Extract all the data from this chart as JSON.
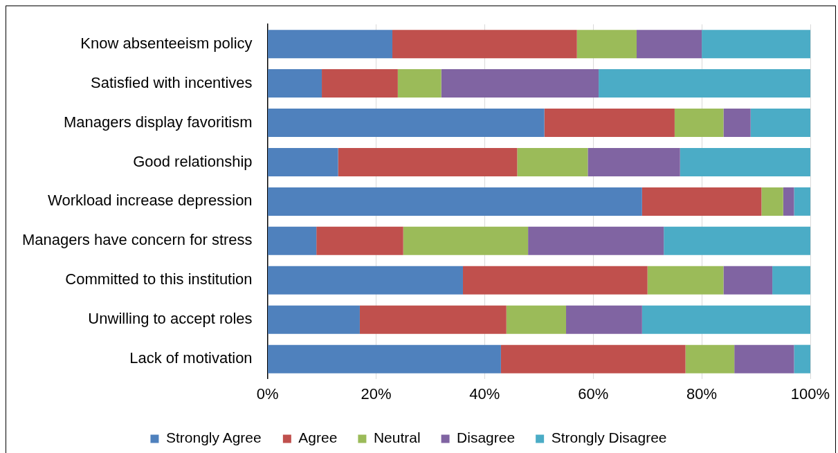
{
  "chart_data": {
    "type": "bar",
    "orientation": "horizontal",
    "stacked": true,
    "categories": [
      "Know absenteeism policy",
      "Satisfied with incentives",
      "Managers display favoritism",
      "Good relationship",
      "Workload increase depression",
      "Managers have concern for stress",
      "Committed to this institution",
      "Unwilling to accept roles",
      "Lack of motivation"
    ],
    "series": [
      {
        "name": "Strongly Agree",
        "color": "#4f81bd",
        "values": [
          23,
          10,
          51,
          13,
          69,
          9,
          36,
          17,
          43
        ]
      },
      {
        "name": "Agree",
        "color": "#c0504d",
        "values": [
          34,
          14,
          24,
          33,
          22,
          16,
          34,
          27,
          34
        ]
      },
      {
        "name": "Neutral",
        "color": "#9bbb59",
        "values": [
          11,
          8,
          9,
          13,
          4,
          23,
          14,
          11,
          9
        ]
      },
      {
        "name": "Disagree",
        "color": "#8064a2",
        "values": [
          12,
          29,
          5,
          17,
          2,
          25,
          9,
          14,
          11
        ]
      },
      {
        "name": "Strongly Disagree",
        "color": "#4bacc6",
        "values": [
          20,
          39,
          11,
          24,
          3,
          27,
          7,
          31,
          3
        ]
      }
    ],
    "xlim": [
      0,
      100
    ],
    "xticks": [
      {
        "value": 0,
        "label": "0%"
      },
      {
        "value": 20,
        "label": "20%"
      },
      {
        "value": 40,
        "label": "40%"
      },
      {
        "value": 60,
        "label": "60%"
      },
      {
        "value": 80,
        "label": "80%"
      },
      {
        "value": 100,
        "label": "100%"
      }
    ],
    "grid": "x",
    "legend": "bottom"
  }
}
